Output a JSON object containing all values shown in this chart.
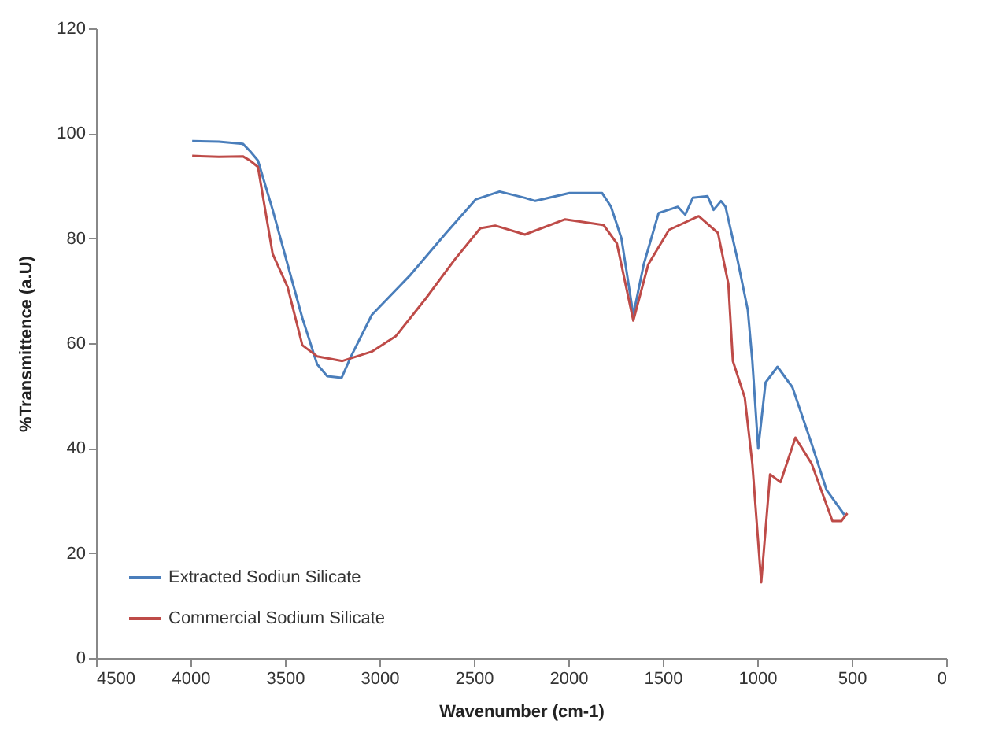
{
  "chart_data": {
    "type": "line",
    "xlabel": "Wavenumber (cm-1)",
    "ylabel": "%Transmittence (a.U)",
    "xlim": [
      4500,
      0
    ],
    "xticks": [
      4500,
      4000,
      3500,
      3000,
      2500,
      2000,
      1500,
      1000,
      500,
      0
    ],
    "ylim": [
      0,
      120
    ],
    "yticks": [
      0,
      20,
      40,
      60,
      80,
      100,
      120
    ],
    "grid": false,
    "legend": "bottom left",
    "line_style": "solid",
    "marker": "none",
    "series": [
      {
        "name": "Extracted Sodiun Silicate",
        "color": "#4a7ebb",
        "x": [
          3991,
          3850,
          3723,
          3685,
          3643,
          3565,
          3486,
          3408,
          3330,
          3276,
          3200,
          3150,
          3040,
          2836,
          2647,
          2490,
          2364,
          2230,
          2175,
          1994,
          1821,
          1774,
          1719,
          1656,
          1601,
          1522,
          1420,
          1381,
          1341,
          1263,
          1231,
          1192,
          1168,
          1105,
          1050,
          1026,
          995,
          956,
          893,
          814,
          712,
          633,
          539
        ],
        "values": [
          98.5,
          98.4,
          98,
          96.6,
          94.8,
          85.4,
          75,
          64.8,
          56,
          53.7,
          53.4,
          57.5,
          65.4,
          73,
          81,
          87.4,
          88.9,
          87.7,
          87.1,
          88.6,
          88.6,
          86,
          80,
          65.4,
          75,
          84.8,
          86,
          84.5,
          87.7,
          88,
          85.4,
          87.1,
          86,
          76,
          66.3,
          56.6,
          39.9,
          52.5,
          55.5,
          51.6,
          40.8,
          32,
          27.3
        ]
      },
      {
        "name": "Commercial Sodium Silicate",
        "color": "#be4b48",
        "x": [
          3991,
          3850,
          3723,
          3685,
          3643,
          3565,
          3486,
          3408,
          3330,
          3196,
          3040,
          2914,
          2757,
          2600,
          2466,
          2387,
          2230,
          2017,
          1813,
          1743,
          1656,
          1577,
          1467,
          1310,
          1208,
          1153,
          1129,
          1066,
          1026,
          979,
          932,
          877,
          798,
          712,
          602,
          555,
          523
        ],
        "values": [
          95.7,
          95.5,
          95.6,
          94.8,
          93.6,
          77,
          70.7,
          59.6,
          57.5,
          56.6,
          58.4,
          61.3,
          68.4,
          76,
          81.9,
          82.4,
          80.7,
          83.6,
          82.5,
          79,
          64.3,
          75,
          81.6,
          84.2,
          81,
          71.3,
          56.6,
          49.6,
          37,
          14.4,
          35,
          33.5,
          42,
          37,
          26.1,
          26.1,
          27.6
        ]
      }
    ]
  }
}
